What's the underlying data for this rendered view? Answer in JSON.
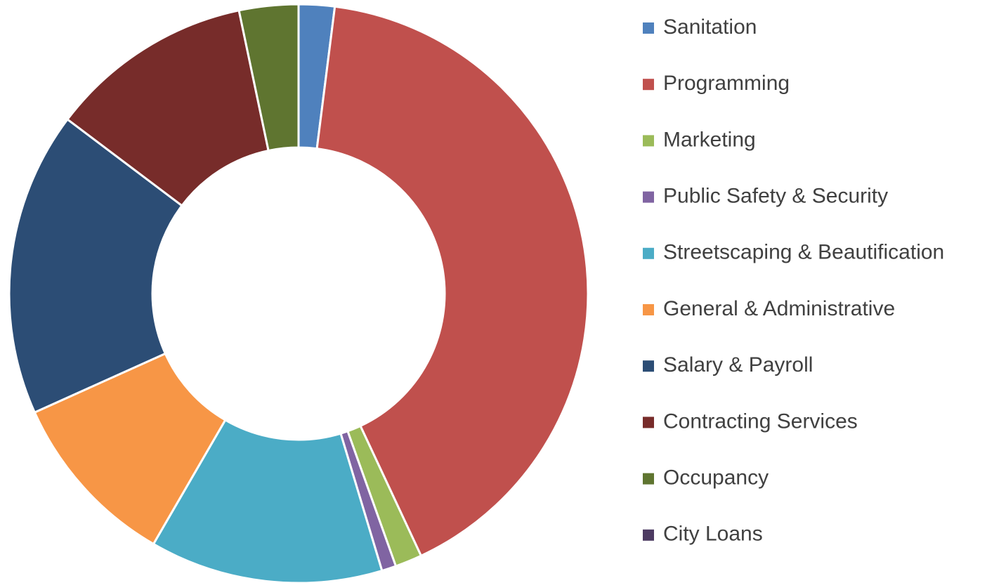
{
  "chart_data": {
    "type": "donut",
    "categories": [
      "Sanitation",
      "Programming",
      "Marketing",
      "Public Safety & Security",
      "Streetscaping & Beautification",
      "General & Administrative",
      "Salary & Payroll",
      "Contracting Services",
      "Occupancy",
      "City Loans"
    ],
    "values": [
      2,
      41,
      1.5,
      0.8,
      13,
      9.9,
      17,
      11.4,
      3.3,
      0
    ],
    "colors": [
      "#4f81bd",
      "#c0504d",
      "#9bbb59",
      "#8064a2",
      "#4bacc6",
      "#f79646",
      "#2c4d75",
      "#772c2a",
      "#5f7530",
      "#4d3b62"
    ],
    "legend": "right"
  }
}
